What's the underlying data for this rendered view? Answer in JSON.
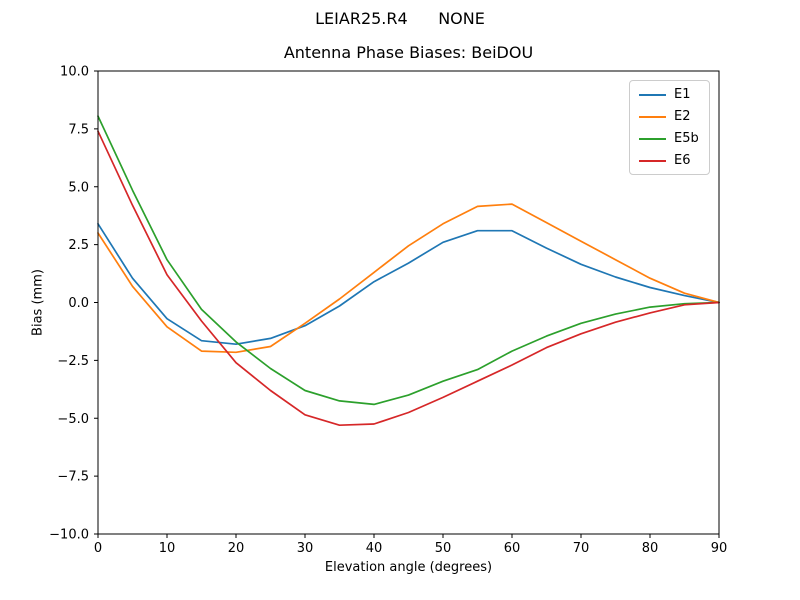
{
  "window": {
    "suptitle": "LEIAR25.R4      NONE"
  },
  "chart_data": {
    "type": "line",
    "title": "Antenna Phase Biases: BeiDOU",
    "xlabel": "Elevation angle (degrees)",
    "ylabel": "Bias (mm)",
    "xlim": [
      0,
      90
    ],
    "ylim": [
      -10.0,
      10.0
    ],
    "xticks": [
      0,
      10,
      20,
      30,
      40,
      50,
      60,
      70,
      80,
      90
    ],
    "yticks": [
      10.0,
      7.5,
      5.0,
      2.5,
      0.0,
      -2.5,
      -5.0,
      -7.5,
      -10.0
    ],
    "grid": false,
    "legend_position": "upper right",
    "x": [
      0,
      5,
      10,
      15,
      20,
      25,
      30,
      35,
      40,
      45,
      50,
      55,
      60,
      65,
      70,
      75,
      80,
      85,
      90
    ],
    "series": [
      {
        "name": "E1",
        "color": "#1f77b4",
        "values": [
          3.4,
          1.05,
          -0.7,
          -1.65,
          -1.8,
          -1.55,
          -1.0,
          -0.15,
          0.9,
          1.7,
          2.6,
          3.1,
          3.1,
          2.35,
          1.65,
          1.1,
          0.65,
          0.3,
          0.0
        ]
      },
      {
        "name": "E2",
        "color": "#ff7f0e",
        "values": [
          3.0,
          0.7,
          -1.05,
          -2.1,
          -2.15,
          -1.9,
          -0.9,
          0.15,
          1.3,
          2.45,
          3.4,
          4.15,
          4.25,
          3.45,
          2.65,
          1.85,
          1.05,
          0.4,
          0.0
        ]
      },
      {
        "name": "E5b",
        "color": "#2ca02c",
        "values": [
          8.05,
          4.85,
          1.85,
          -0.3,
          -1.7,
          -2.85,
          -3.8,
          -4.25,
          -4.4,
          -4.0,
          -3.4,
          -2.9,
          -2.1,
          -1.45,
          -0.9,
          -0.5,
          -0.2,
          -0.05,
          0.0
        ]
      },
      {
        "name": "E6",
        "color": "#d62728",
        "values": [
          7.4,
          4.2,
          1.2,
          -0.8,
          -2.6,
          -3.8,
          -4.85,
          -5.3,
          -5.25,
          -4.75,
          -4.1,
          -3.4,
          -2.7,
          -1.95,
          -1.35,
          -0.85,
          -0.45,
          -0.1,
          0.0
        ]
      }
    ]
  }
}
